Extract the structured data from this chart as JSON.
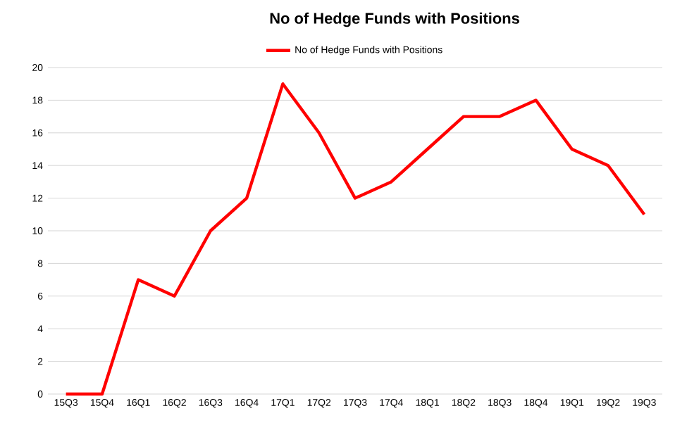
{
  "chart_data": {
    "type": "line",
    "title": "No of Hedge Funds with Positions",
    "categories": [
      "15Q3",
      "15Q4",
      "16Q1",
      "16Q2",
      "16Q3",
      "16Q4",
      "17Q1",
      "17Q2",
      "17Q3",
      "17Q4",
      "18Q1",
      "18Q2",
      "18Q3",
      "18Q4",
      "19Q1",
      "19Q2",
      "19Q3"
    ],
    "series": [
      {
        "name": "No of Hedge Funds with Positions",
        "color": "#ff0000",
        "values": [
          0,
          0,
          7,
          6,
          10,
          12,
          19,
          16,
          12,
          13,
          15,
          17,
          17,
          18,
          15,
          14,
          11
        ]
      }
    ],
    "ylim": [
      0,
      20
    ],
    "yticks": [
      0,
      2,
      4,
      6,
      8,
      10,
      12,
      14,
      16,
      18,
      20
    ],
    "grid": "y",
    "legend": "top",
    "marker": "none",
    "line_style": "solid"
  }
}
